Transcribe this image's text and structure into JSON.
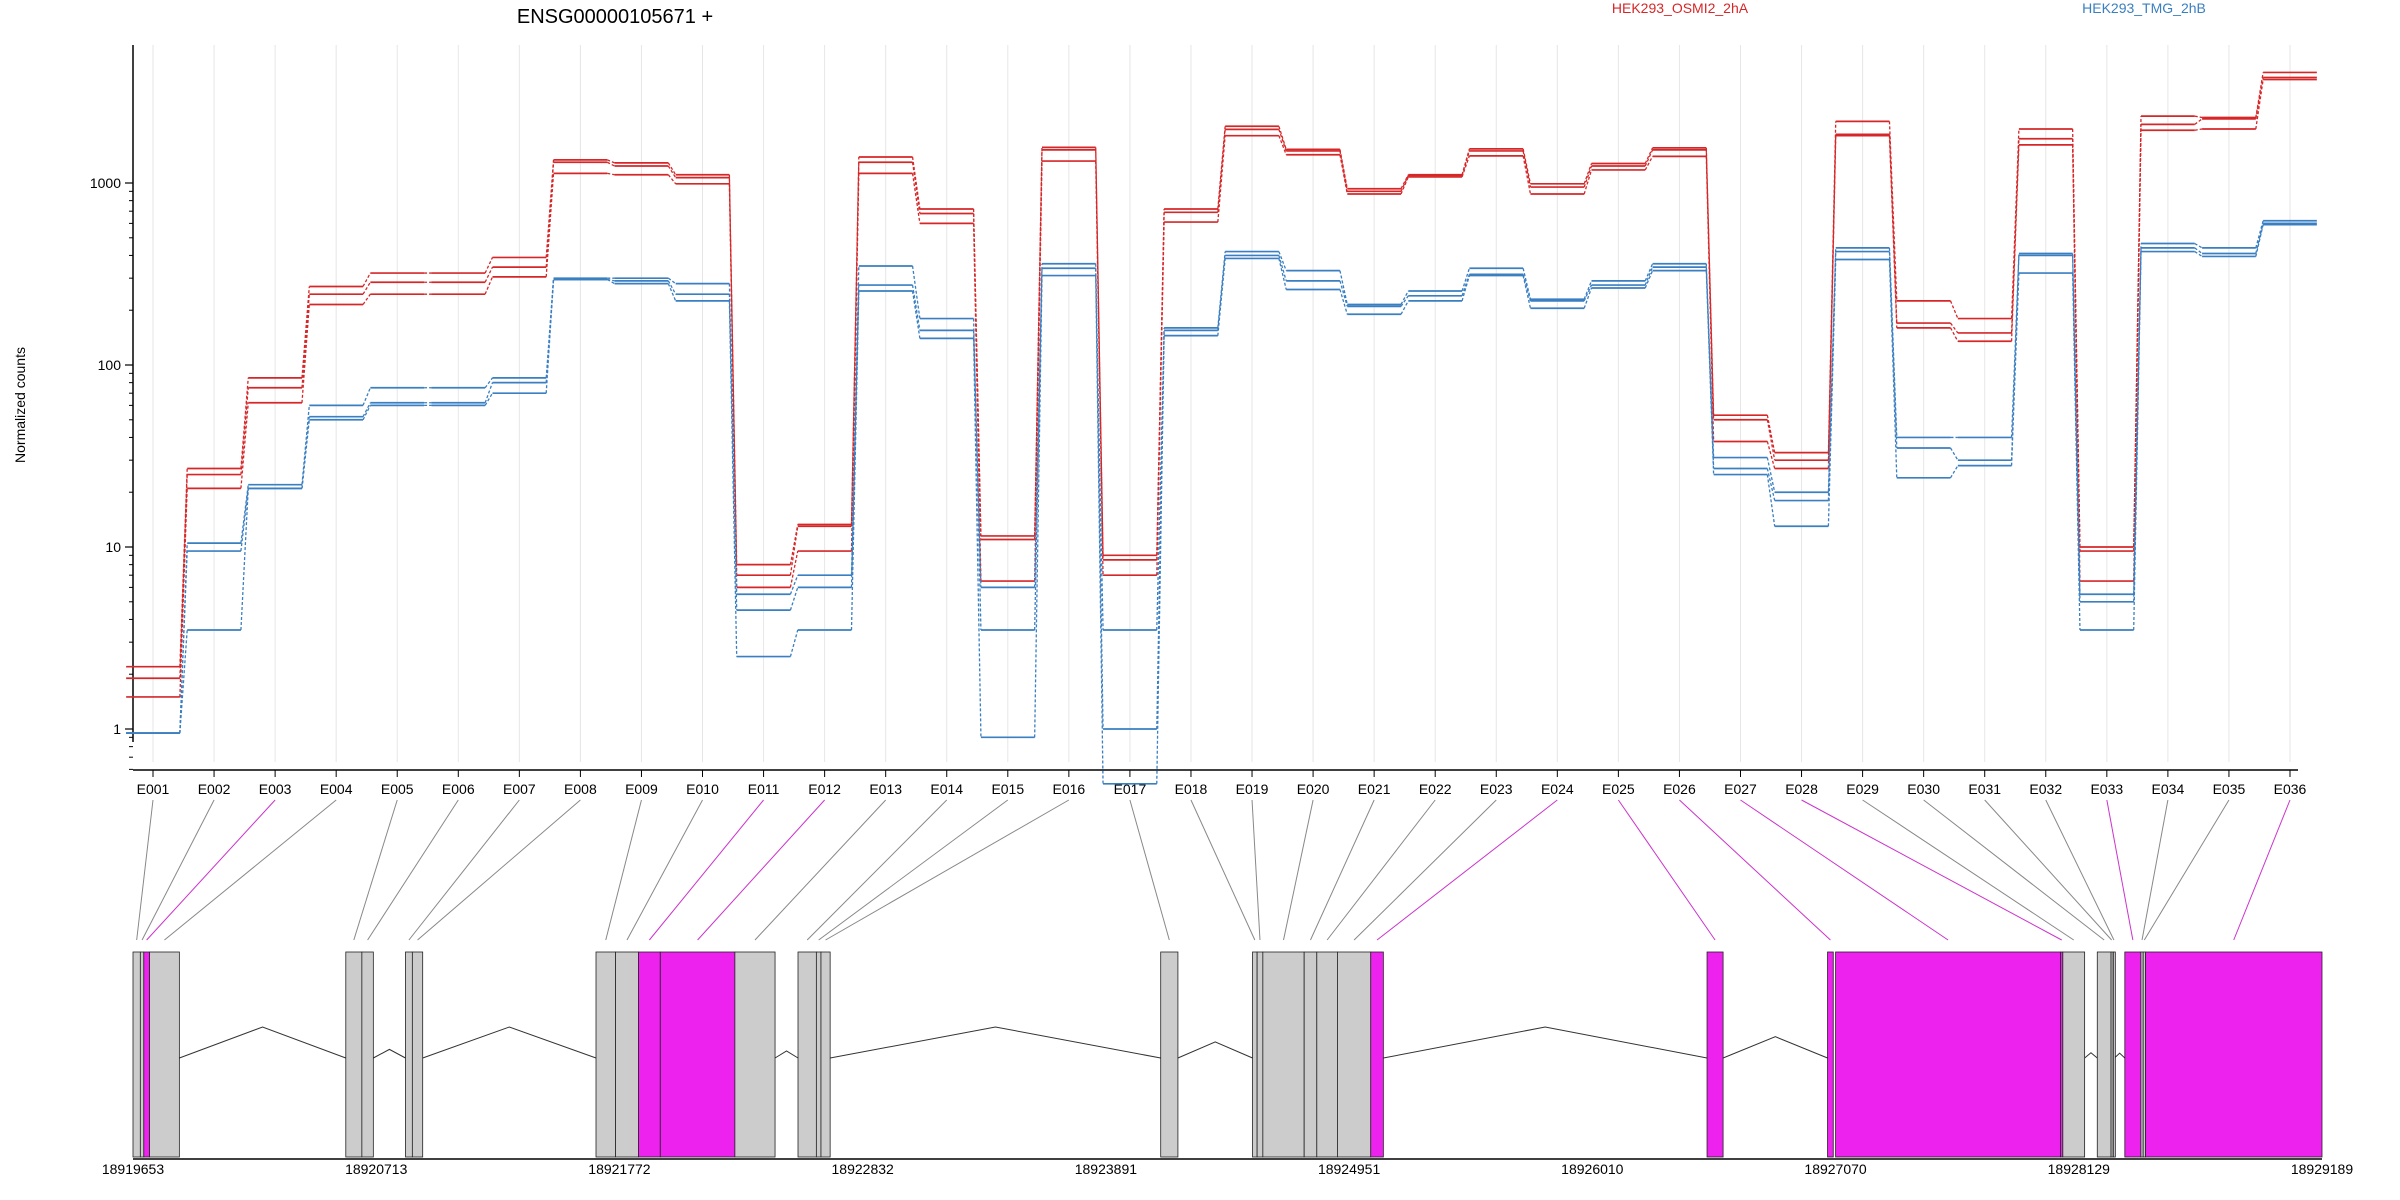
{
  "title": "ENSG00000105671 +",
  "chart_data": {
    "type": "line",
    "title": "ENSG00000105671 +",
    "ylabel": "Normalized counts",
    "yscale": "log",
    "ylim": [
      0.5,
      6000
    ],
    "yticks": [
      {
        "value": 1,
        "label": "1"
      },
      {
        "value": 10,
        "label": "10"
      },
      {
        "value": 100,
        "label": "100"
      },
      {
        "value": 1000,
        "label": "1000"
      }
    ],
    "grid": true,
    "categories": [
      "E001",
      "E002",
      "E003",
      "E004",
      "E005",
      "E006",
      "E007",
      "E008",
      "E009",
      "E010",
      "E011",
      "E012",
      "E013",
      "E014",
      "E015",
      "E016",
      "E017",
      "E018",
      "E019",
      "E020",
      "E021",
      "E022",
      "E023",
      "E024",
      "E025",
      "E026",
      "E027",
      "E028",
      "E029",
      "E030",
      "E031",
      "E032",
      "E033",
      "E034",
      "E035",
      "E036"
    ],
    "legend": [
      {
        "label": "HEK293_OSMI2_2hA",
        "color": "#d62728"
      },
      {
        "label": "HEK293_TMG_2hB",
        "color": "#3a7fc1"
      }
    ],
    "series": [
      {
        "group": "HEK293_OSMI2_2hA",
        "color": "#d62728",
        "values": [
          1.5,
          21,
          62,
          215,
          245,
          245,
          305,
          1130,
          1110,
          990,
          6,
          9.5,
          1130,
          600,
          6.5,
          1320,
          7,
          610,
          1820,
          1430,
          870,
          1080,
          1410,
          870,
          1180,
          1400,
          38,
          27,
          1820,
          160,
          135,
          1620,
          6.5,
          1950,
          1980,
          3700
        ]
      },
      {
        "group": "HEK293_OSMI2_2hA",
        "color": "#d62728",
        "values": [
          1.9,
          25,
          75,
          245,
          285,
          285,
          345,
          1300,
          1240,
          1070,
          7,
          13,
          1300,
          680,
          11,
          1520,
          8.5,
          690,
          1970,
          1500,
          900,
          1100,
          1500,
          950,
          1240,
          1520,
          50,
          30,
          1850,
          170,
          150,
          1750,
          9.5,
          2100,
          2250,
          3800
        ]
      },
      {
        "group": "HEK293_OSMI2_2hA",
        "color": "#d62728",
        "values": [
          2.2,
          27,
          85,
          270,
          320,
          320,
          390,
          1340,
          1290,
          1110,
          8,
          13.3,
          1390,
          720,
          11.5,
          1570,
          9,
          720,
          2050,
          1530,
          930,
          1110,
          1540,
          990,
          1280,
          1560,
          53,
          33,
          2180,
          225,
          180,
          1980,
          10,
          2330,
          2290,
          4050
        ]
      },
      {
        "group": "HEK293_TMG_2hB",
        "color": "#3a7fc1",
        "values": [
          0.95,
          3.5,
          21,
          50,
          60,
          60,
          70,
          295,
          280,
          225,
          2.5,
          3.5,
          255,
          140,
          0.9,
          310,
          0.5,
          145,
          385,
          260,
          190,
          225,
          310,
          205,
          265,
          330,
          25,
          13,
          380,
          24,
          28,
          320,
          3.5,
          420,
          395,
          590
        ]
      },
      {
        "group": "HEK293_TMG_2hB",
        "color": "#3a7fc1",
        "values": [
          0.95,
          9.5,
          21,
          52,
          62,
          62,
          80,
          295,
          290,
          245,
          4.5,
          6,
          275,
          155,
          6,
          340,
          3.5,
          155,
          400,
          290,
          210,
          240,
          315,
          225,
          275,
          345,
          27,
          18,
          420,
          35,
          30,
          400,
          5,
          440,
          410,
          600
        ]
      },
      {
        "group": "HEK293_TMG_2hB",
        "color": "#3a7fc1",
        "values": [
          0.95,
          10.5,
          22,
          60,
          75,
          75,
          85,
          300,
          300,
          280,
          5.5,
          7,
          350,
          180,
          3.5,
          360,
          1,
          160,
          420,
          330,
          215,
          255,
          340,
          230,
          290,
          360,
          31,
          20,
          440,
          40,
          40,
          410,
          5.5,
          465,
          440,
          620
        ]
      }
    ]
  },
  "gene_model": {
    "coordinate_labels": [
      "18919653",
      "18920713",
      "18921772",
      "18922832",
      "18923891",
      "18924951",
      "18926010",
      "18927070",
      "18928129",
      "18929189"
    ],
    "genomic_start": 18919653,
    "genomic_end": 18929189,
    "exon_color": "#cccccc",
    "highlight_color": "#ee22ee",
    "highlighted_exons": [
      "E003",
      "E011",
      "E012",
      "E024",
      "E025",
      "E026",
      "E027",
      "E028",
      "E033",
      "E036"
    ],
    "exons": [
      {
        "id": "E001",
        "start": 18919653,
        "end": 18919685
      },
      {
        "id": "E002",
        "start": 18919685,
        "end": 18919700
      },
      {
        "id": "E003",
        "start": 18919700,
        "end": 18919725
      },
      {
        "id": "E004",
        "start": 18919725,
        "end": 18919855
      },
      {
        "id": "E005",
        "start": 18920580,
        "end": 18920650
      },
      {
        "id": "E006",
        "start": 18920650,
        "end": 18920700
      },
      {
        "id": "E007",
        "start": 18920840,
        "end": 18920870
      },
      {
        "id": "E008",
        "start": 18920870,
        "end": 18920915
      },
      {
        "id": "E009",
        "start": 18921670,
        "end": 18921755
      },
      {
        "id": "E010",
        "start": 18921755,
        "end": 18921855
      },
      {
        "id": "E011",
        "start": 18921855,
        "end": 18921950
      },
      {
        "id": "E012",
        "start": 18921950,
        "end": 18922275
      },
      {
        "id": "E013",
        "start": 18922275,
        "end": 18922450
      },
      {
        "id": "E014",
        "start": 18922550,
        "end": 18922630
      },
      {
        "id": "E015",
        "start": 18922630,
        "end": 18922650
      },
      {
        "id": "E016",
        "start": 18922650,
        "end": 18922690
      },
      {
        "id": "E017",
        "start": 18924130,
        "end": 18924205
      },
      {
        "id": "E018",
        "start": 18924530,
        "end": 18924550
      },
      {
        "id": "E019",
        "start": 18924550,
        "end": 18924575
      },
      {
        "id": "E020",
        "start": 18924575,
        "end": 18924755
      },
      {
        "id": "E021",
        "start": 18924755,
        "end": 18924810
      },
      {
        "id": "E022",
        "start": 18924810,
        "end": 18924900
      },
      {
        "id": "E023",
        "start": 18924900,
        "end": 18925045
      },
      {
        "id": "E024",
        "start": 18925045,
        "end": 18925100
      },
      {
        "id": "E025",
        "start": 18926510,
        "end": 18926580
      },
      {
        "id": "E026",
        "start": 18927035,
        "end": 18927060
      },
      {
        "id": "E027",
        "start": 18927070,
        "end": 18928050
      },
      {
        "id": "E028",
        "start": 18928050,
        "end": 18928060
      },
      {
        "id": "E029",
        "start": 18928060,
        "end": 18928155
      },
      {
        "id": "E030",
        "start": 18928210,
        "end": 18928270
      },
      {
        "id": "E031",
        "start": 18928270,
        "end": 18928275
      },
      {
        "id": "E032",
        "start": 18928280,
        "end": 18928285
      },
      {
        "id": "E033",
        "start": 18928330,
        "end": 18928400
      },
      {
        "id": "E034",
        "start": 18928400,
        "end": 18928410
      },
      {
        "id": "E035",
        "start": 18928410,
        "end": 18928420
      },
      {
        "id": "E036",
        "start": 18928420,
        "end": 18929189
      }
    ]
  }
}
